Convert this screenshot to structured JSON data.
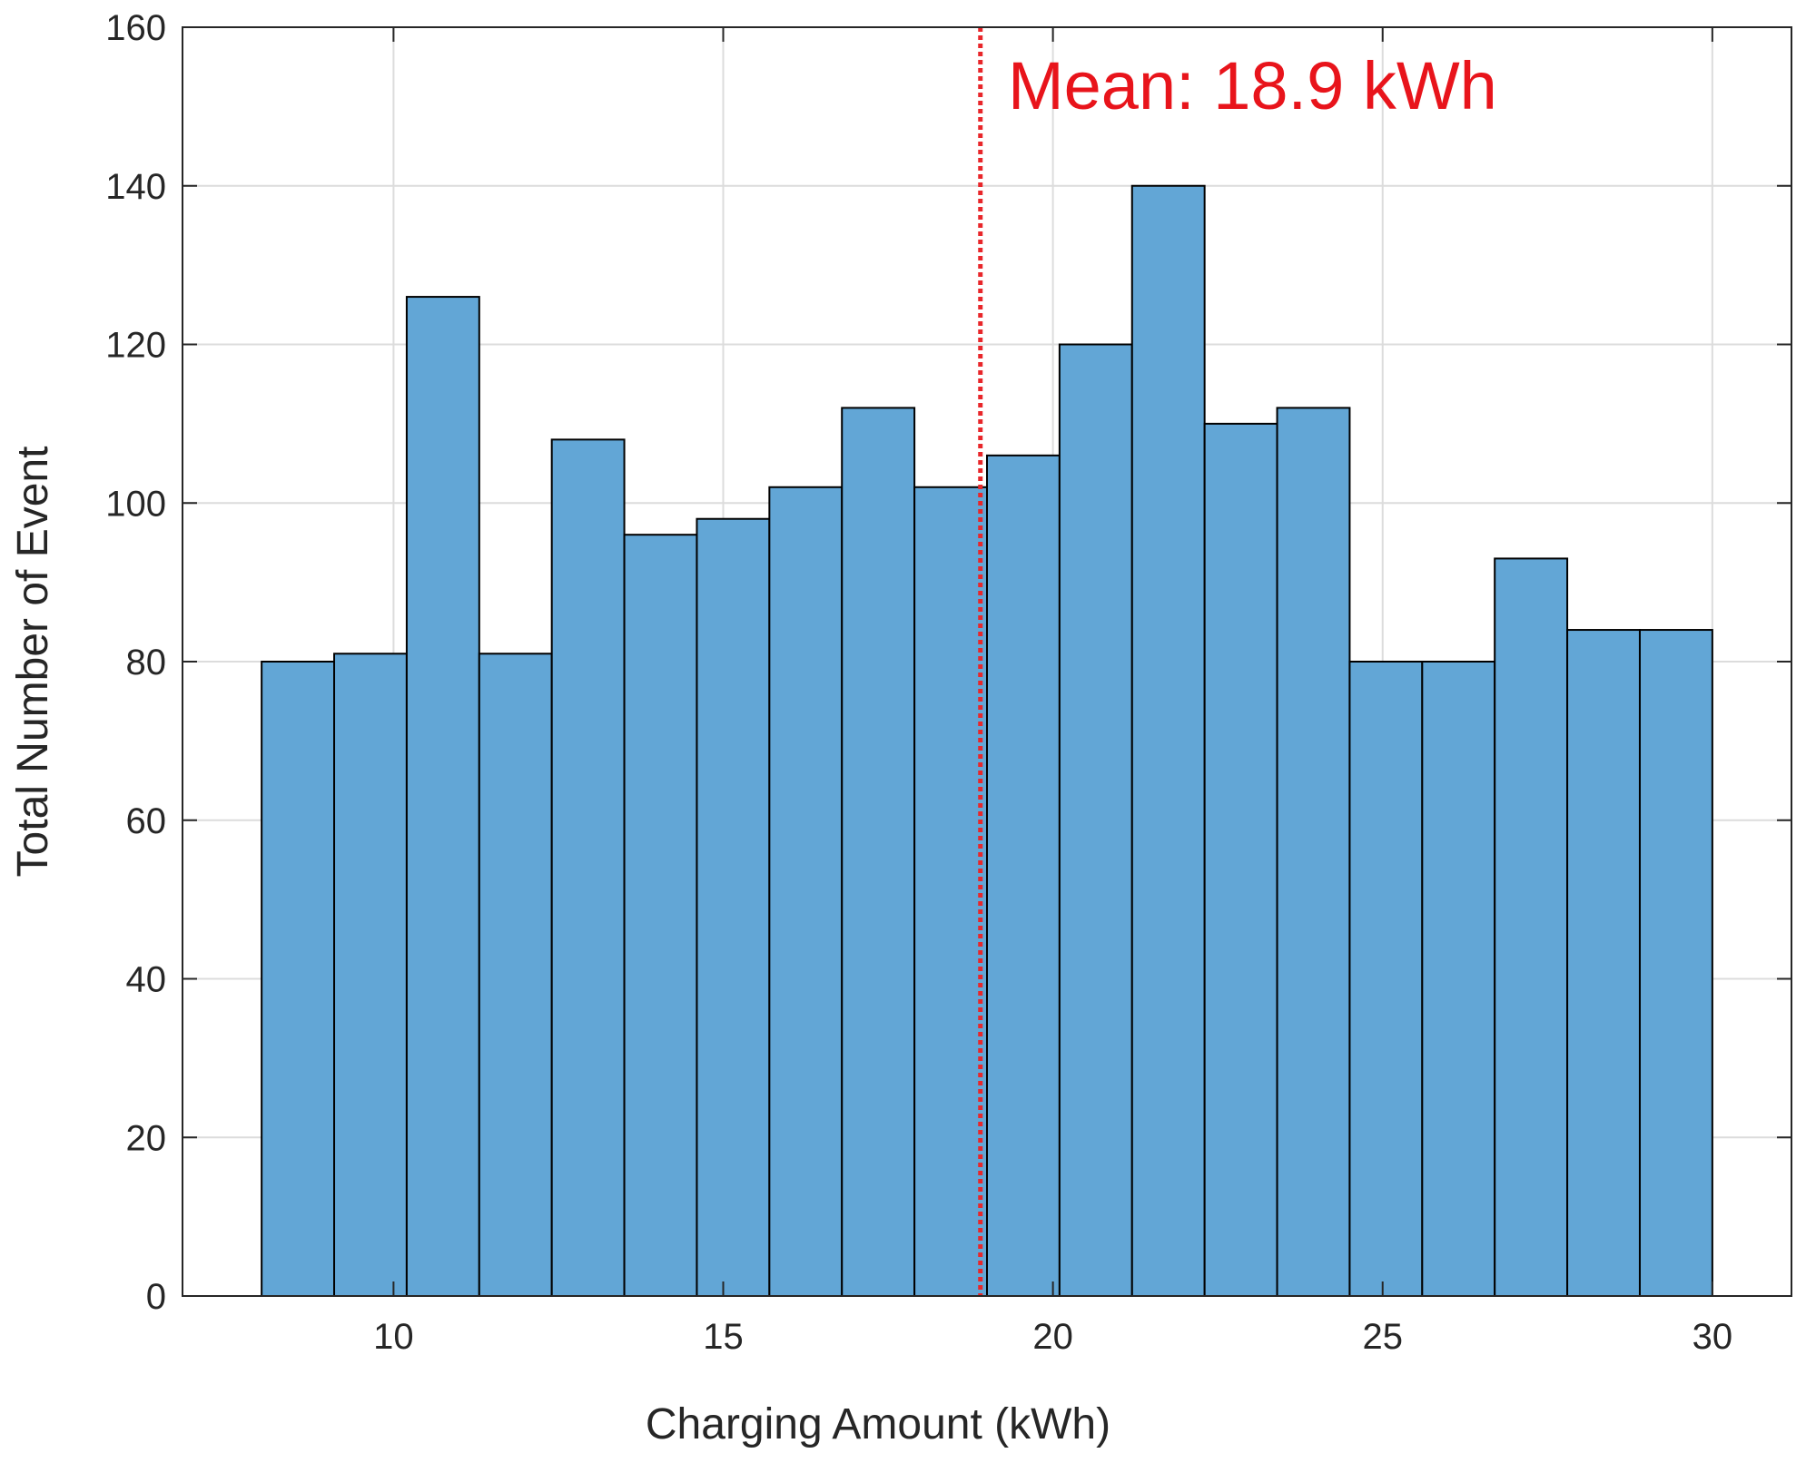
{
  "chart_data": {
    "type": "bar",
    "subtype": "histogram",
    "title": "",
    "xlabel": "Charging Amount (kWh)",
    "ylabel": "Total Number of Event",
    "xlim": [
      6.8,
      31.2
    ],
    "ylim": [
      0,
      160
    ],
    "xticks": [
      10,
      15,
      20,
      25,
      30
    ],
    "yticks": [
      0,
      20,
      40,
      60,
      80,
      100,
      120,
      140,
      160
    ],
    "grid": true,
    "legend": "none",
    "bins": [
      {
        "x0": 8.0,
        "x1": 9.1,
        "value": 80
      },
      {
        "x0": 9.1,
        "x1": 10.2,
        "value": 81
      },
      {
        "x0": 10.2,
        "x1": 11.3,
        "value": 126
      },
      {
        "x0": 11.3,
        "x1": 12.4,
        "value": 81
      },
      {
        "x0": 12.4,
        "x1": 13.5,
        "value": 108
      },
      {
        "x0": 13.5,
        "x1": 14.6,
        "value": 96
      },
      {
        "x0": 14.6,
        "x1": 15.7,
        "value": 98
      },
      {
        "x0": 15.7,
        "x1": 16.8,
        "value": 102
      },
      {
        "x0": 16.8,
        "x1": 17.9,
        "value": 112
      },
      {
        "x0": 17.9,
        "x1": 19.0,
        "value": 102
      },
      {
        "x0": 19.0,
        "x1": 20.1,
        "value": 106
      },
      {
        "x0": 20.1,
        "x1": 21.2,
        "value": 120
      },
      {
        "x0": 21.2,
        "x1": 22.3,
        "value": 140
      },
      {
        "x0": 22.3,
        "x1": 23.4,
        "value": 110
      },
      {
        "x0": 23.4,
        "x1": 24.5,
        "value": 112
      },
      {
        "x0": 24.5,
        "x1": 25.6,
        "value": 80
      },
      {
        "x0": 25.6,
        "x1": 26.7,
        "value": 80
      },
      {
        "x0": 26.7,
        "x1": 27.8,
        "value": 93
      },
      {
        "x0": 27.8,
        "x1": 28.9,
        "value": 84
      },
      {
        "x0": 28.9,
        "x1": 30.0,
        "value": 84
      }
    ],
    "mean_line": {
      "x": 18.9,
      "style": "dotted",
      "color": "#e8262a"
    },
    "annotation": {
      "text": "Mean: 18.9 kWh",
      "color": "#e8141b"
    },
    "colors": {
      "bar_fill": "#62a6d6",
      "bar_edge": "#000000",
      "grid": "#dcdcdc",
      "axis": "#262626"
    }
  }
}
